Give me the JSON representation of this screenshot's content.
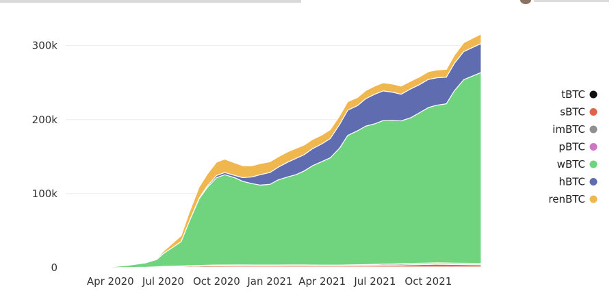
{
  "chart_data": {
    "type": "area",
    "stacked": true,
    "x_ticks": [
      "Apr 2020",
      "Jul 2020",
      "Oct 2020",
      "Jan 2021",
      "Apr 2021",
      "Jul 2021",
      "Oct 2021"
    ],
    "y_ticks": [
      {
        "value": 0,
        "label": "0"
      },
      {
        "value": 100000,
        "label": "100k"
      },
      {
        "value": 200000,
        "label": "200k"
      },
      {
        "value": 300000,
        "label": "300k"
      }
    ],
    "ylim": [
      0,
      320000
    ],
    "xlim": [
      "2020-01-15",
      "2021-12-31"
    ],
    "grid": true,
    "legend_position": "right",
    "dates": [
      "2020-01-15",
      "2020-03-01",
      "2020-04-01",
      "2020-05-01",
      "2020-06-01",
      "2020-06-20",
      "2020-07-01",
      "2020-08-01",
      "2020-08-15",
      "2020-09-01",
      "2020-09-15",
      "2020-10-01",
      "2020-10-15",
      "2020-11-01",
      "2020-11-15",
      "2020-12-01",
      "2020-12-15",
      "2021-01-01",
      "2021-01-15",
      "2021-02-01",
      "2021-02-15",
      "2021-03-01",
      "2021-03-15",
      "2021-04-01",
      "2021-04-15",
      "2021-05-01",
      "2021-05-15",
      "2021-06-01",
      "2021-06-15",
      "2021-07-01",
      "2021-07-15",
      "2021-08-01",
      "2021-08-15",
      "2021-09-01",
      "2021-09-15",
      "2021-10-01",
      "2021-10-15",
      "2021-11-01",
      "2021-11-15",
      "2021-12-01",
      "2021-12-31"
    ],
    "series": [
      {
        "name": "tBTC",
        "color": "#111111",
        "values": [
          0,
          0,
          0,
          0,
          100,
          200,
          300,
          400,
          500,
          600,
          700,
          800,
          800,
          900,
          900,
          900,
          900,
          900,
          900,
          900,
          900,
          900,
          900,
          900,
          900,
          900,
          900,
          900,
          900,
          900,
          900,
          900,
          900,
          900,
          900,
          900,
          900,
          900,
          900,
          900,
          900
        ]
      },
      {
        "name": "sBTC",
        "color": "#e0644a",
        "values": [
          0,
          0,
          0,
          100,
          300,
          600,
          900,
          1200,
          1400,
          1600,
          1800,
          1900,
          1900,
          2000,
          2000,
          2000,
          2000,
          2000,
          2100,
          2200,
          2200,
          2200,
          2100,
          2000,
          2000,
          2000,
          2100,
          2200,
          2200,
          2300,
          2400,
          2500,
          2700,
          3000,
          3200,
          3500,
          3700,
          3600,
          3400,
          3200,
          3000
        ]
      },
      {
        "name": "imBTC",
        "color": "#8f8f8f",
        "values": [
          0,
          0,
          0,
          100,
          200,
          300,
          500,
          600,
          700,
          700,
          800,
          800,
          800,
          700,
          700,
          600,
          600,
          600,
          500,
          500,
          500,
          500,
          500,
          500,
          500,
          500,
          600,
          800,
          1000,
          1200,
          1400,
          1500,
          1600,
          1700,
          1800,
          1800,
          1800,
          1800,
          1800,
          1800,
          1800
        ]
      },
      {
        "name": "pBTC",
        "color": "#cc77c3",
        "values": [
          0,
          0,
          0,
          0,
          0,
          100,
          100,
          100,
          100,
          100,
          100,
          100,
          100,
          100,
          100,
          100,
          100,
          100,
          100,
          100,
          100,
          100,
          100,
          100,
          100,
          100,
          100,
          100,
          100,
          100,
          100,
          100,
          100,
          100,
          100,
          100,
          100,
          100,
          100,
          100,
          100
        ]
      },
      {
        "name": "wBTC",
        "color": "#70d47e",
        "values": [
          0,
          300,
          1000,
          3000,
          6000,
          10000,
          17000,
          33000,
          60000,
          90000,
          105000,
          118000,
          122000,
          118000,
          113000,
          110000,
          108000,
          109000,
          115000,
          119000,
          122000,
          127000,
          134000,
          140000,
          145000,
          158000,
          175000,
          181000,
          187000,
          190000,
          194000,
          194000,
          193000,
          197000,
          203000,
          210000,
          213000,
          215000,
          233000,
          248000,
          258000
        ]
      },
      {
        "name": "hBTC",
        "color": "#5f6cb0",
        "values": [
          0,
          0,
          0,
          0,
          0,
          0,
          0,
          0,
          0,
          1000,
          2000,
          3000,
          3000,
          3000,
          5000,
          9000,
          14000,
          16000,
          17000,
          20000,
          22000,
          22000,
          23000,
          24000,
          26000,
          32000,
          34000,
          34000,
          37000,
          40000,
          40000,
          38000,
          36000,
          39000,
          38000,
          38000,
          37000,
          36000,
          37000,
          38000,
          39000
        ]
      },
      {
        "name": "renBTC",
        "color": "#f0b74f",
        "values": [
          0,
          0,
          0,
          0,
          200,
          800,
          3000,
          8000,
          12000,
          15000,
          16000,
          18000,
          18000,
          17000,
          16000,
          15000,
          15000,
          14500,
          14000,
          14000,
          13500,
          13000,
          12500,
          12000,
          12000,
          11500,
          11500,
          11000,
          11000,
          11000,
          11000,
          11000,
          11000,
          10500,
          10500,
          10500,
          10500,
          10500,
          11000,
          12000,
          13000
        ]
      }
    ]
  },
  "legend": [
    {
      "label": "tBTC",
      "color": "#111111"
    },
    {
      "label": "sBTC",
      "color": "#e0644a"
    },
    {
      "label": "imBTC",
      "color": "#8f8f8f"
    },
    {
      "label": "pBTC",
      "color": "#cc77c3"
    },
    {
      "label": "wBTC",
      "color": "#70d47e"
    },
    {
      "label": "hBTC",
      "color": "#5f6cb0"
    },
    {
      "label": "renBTC",
      "color": "#f0b74f"
    }
  ]
}
